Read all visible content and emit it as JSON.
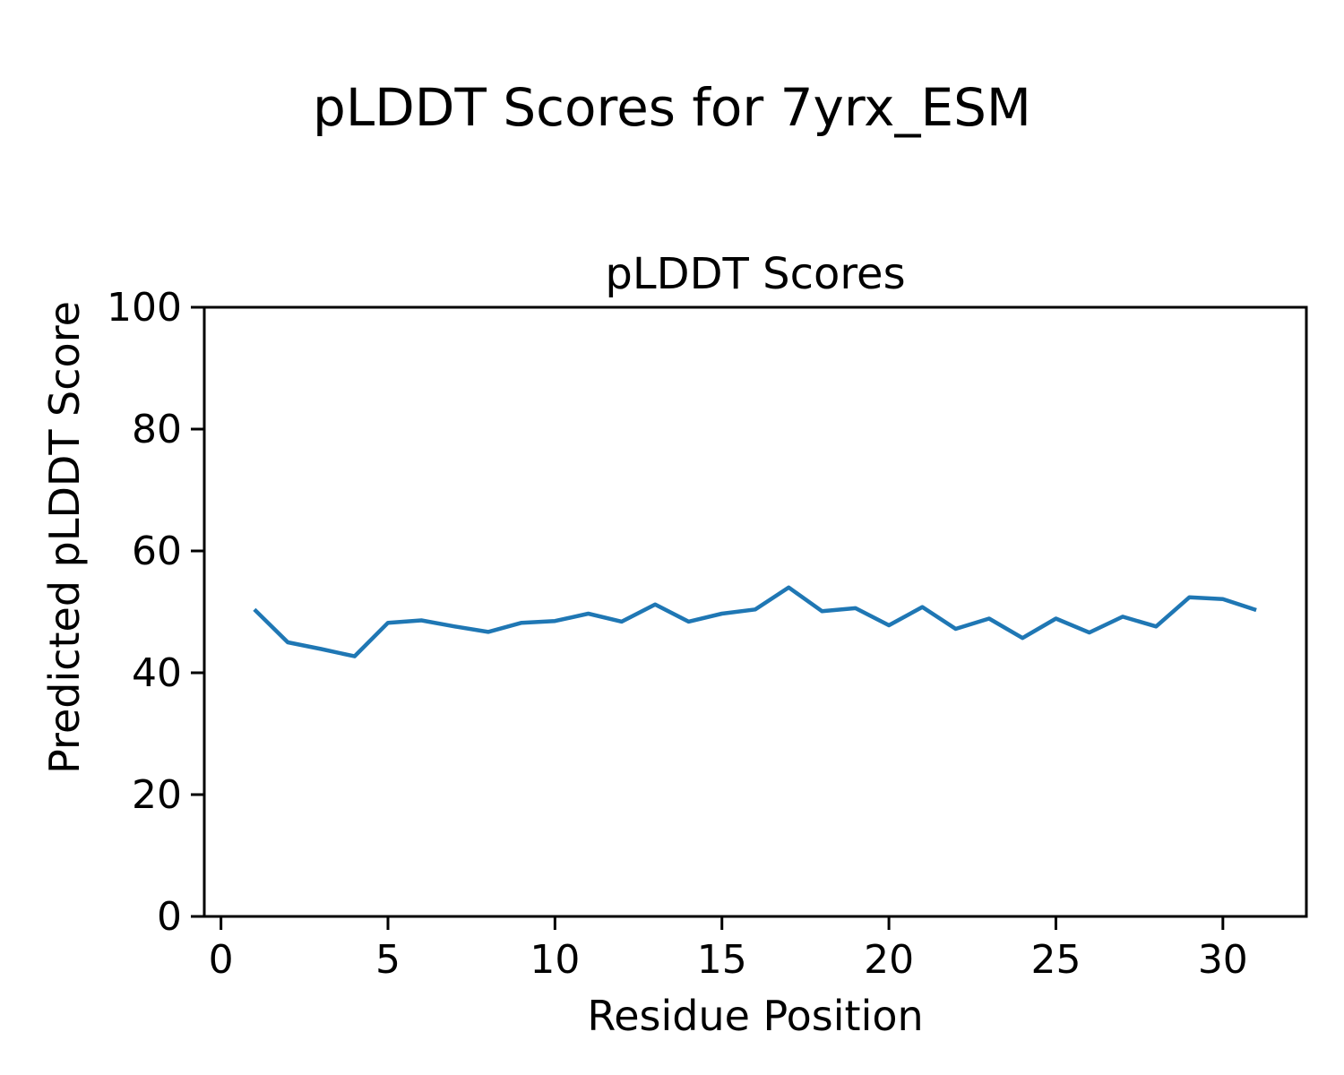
{
  "chart_data": {
    "type": "line",
    "suptitle": "pLDDT Scores for 7yrx_ESM",
    "title": "pLDDT Scores",
    "xlabel": "Residue Position",
    "ylabel": "Predicted pLDDT Score",
    "x": [
      1,
      2,
      3,
      4,
      5,
      6,
      7,
      8,
      9,
      10,
      11,
      12,
      13,
      14,
      15,
      16,
      17,
      18,
      19,
      20,
      21,
      22,
      23,
      24,
      25,
      26,
      27,
      28,
      29,
      30,
      31
    ],
    "y": [
      50.4,
      45.0,
      43.9,
      42.7,
      48.2,
      48.6,
      47.6,
      46.7,
      48.2,
      48.5,
      49.7,
      48.4,
      51.2,
      48.4,
      49.7,
      50.4,
      54.0,
      50.1,
      50.6,
      47.8,
      50.8,
      47.2,
      48.9,
      45.7,
      48.9,
      46.6,
      49.2,
      47.6,
      52.4,
      52.1,
      50.3
    ],
    "xlim": [
      -0.5,
      32.5
    ],
    "ylim": [
      0,
      100
    ],
    "xticks": [
      0,
      5,
      10,
      15,
      20,
      25,
      30
    ],
    "yticks": [
      0,
      20,
      40,
      60,
      80,
      100
    ],
    "line_color": "#1f77b4",
    "line_width": 4.5,
    "axis_color": "#000000",
    "grid": false,
    "legend_position": "none"
  }
}
